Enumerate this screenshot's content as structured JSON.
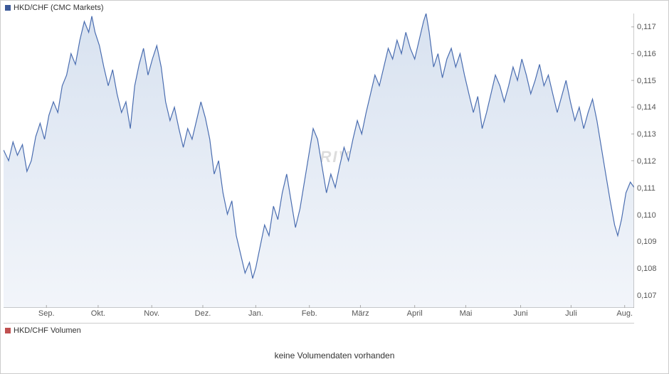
{
  "chart": {
    "type": "area",
    "title": "HKD/CHF (CMC Markets)",
    "title_marker_color": "#3b5998",
    "watermark": "ARIVA",
    "line_color": "#4a6db0",
    "line_width": 1.2,
    "fill_gradient_top": "#d8e2f0",
    "fill_gradient_bottom": "#f2f5fa",
    "background_color": "#ffffff",
    "border_color": "#cccccc",
    "ylim": [
      0.1065,
      0.1175
    ],
    "yticks": [
      0.107,
      0.108,
      0.109,
      0.11,
      0.111,
      0.112,
      0.113,
      0.114,
      0.115,
      0.116,
      0.117
    ],
    "ytick_labels": [
      "0,107",
      "0,108",
      "0,109",
      "0,110",
      "0,111",
      "0,112",
      "0,113",
      "0,114",
      "0,115",
      "0,116",
      "0,117"
    ],
    "xticks": [
      "Sep.",
      "Okt.",
      "Nov.",
      "Dez.",
      "Jan.",
      "Feb.",
      "März",
      "April",
      "Mai",
      "Juni",
      "Juli",
      "Aug."
    ],
    "xtick_positions": [
      0.068,
      0.15,
      0.235,
      0.316,
      0.4,
      0.485,
      0.566,
      0.652,
      0.733,
      0.82,
      0.9,
      0.985
    ],
    "label_fontsize": 11,
    "label_color": "#555555",
    "series": [
      [
        0.0,
        0.1124
      ],
      [
        0.008,
        0.112
      ],
      [
        0.015,
        0.1127
      ],
      [
        0.022,
        0.1122
      ],
      [
        0.03,
        0.1126
      ],
      [
        0.037,
        0.1116
      ],
      [
        0.044,
        0.112
      ],
      [
        0.051,
        0.1129
      ],
      [
        0.058,
        0.1134
      ],
      [
        0.065,
        0.1128
      ],
      [
        0.072,
        0.1137
      ],
      [
        0.079,
        0.1142
      ],
      [
        0.086,
        0.1138
      ],
      [
        0.093,
        0.1148
      ],
      [
        0.1,
        0.1152
      ],
      [
        0.107,
        0.116
      ],
      [
        0.114,
        0.1156
      ],
      [
        0.121,
        0.1165
      ],
      [
        0.128,
        0.1172
      ],
      [
        0.135,
        0.1168
      ],
      [
        0.14,
        0.1174
      ],
      [
        0.145,
        0.1168
      ],
      [
        0.152,
        0.1163
      ],
      [
        0.159,
        0.1155
      ],
      [
        0.166,
        0.1148
      ],
      [
        0.173,
        0.1154
      ],
      [
        0.18,
        0.1145
      ],
      [
        0.187,
        0.1138
      ],
      [
        0.194,
        0.1142
      ],
      [
        0.201,
        0.1132
      ],
      [
        0.208,
        0.1148
      ],
      [
        0.215,
        0.1156
      ],
      [
        0.222,
        0.1162
      ],
      [
        0.229,
        0.1152
      ],
      [
        0.236,
        0.1158
      ],
      [
        0.243,
        0.1163
      ],
      [
        0.25,
        0.1155
      ],
      [
        0.257,
        0.1142
      ],
      [
        0.264,
        0.1135
      ],
      [
        0.271,
        0.114
      ],
      [
        0.278,
        0.1132
      ],
      [
        0.285,
        0.1125
      ],
      [
        0.292,
        0.1132
      ],
      [
        0.299,
        0.1128
      ],
      [
        0.306,
        0.1135
      ],
      [
        0.313,
        0.1142
      ],
      [
        0.32,
        0.1136
      ],
      [
        0.327,
        0.1128
      ],
      [
        0.334,
        0.1115
      ],
      [
        0.341,
        0.112
      ],
      [
        0.348,
        0.1108
      ],
      [
        0.355,
        0.11
      ],
      [
        0.362,
        0.1105
      ],
      [
        0.369,
        0.1092
      ],
      [
        0.376,
        0.1085
      ],
      [
        0.383,
        0.1078
      ],
      [
        0.39,
        0.1082
      ],
      [
        0.395,
        0.1076
      ],
      [
        0.4,
        0.108
      ],
      [
        0.407,
        0.1088
      ],
      [
        0.414,
        0.1096
      ],
      [
        0.421,
        0.1092
      ],
      [
        0.428,
        0.1103
      ],
      [
        0.435,
        0.1098
      ],
      [
        0.442,
        0.1108
      ],
      [
        0.449,
        0.1115
      ],
      [
        0.456,
        0.1105
      ],
      [
        0.463,
        0.1095
      ],
      [
        0.47,
        0.1102
      ],
      [
        0.477,
        0.1112
      ],
      [
        0.484,
        0.1122
      ],
      [
        0.491,
        0.1132
      ],
      [
        0.498,
        0.1128
      ],
      [
        0.505,
        0.1118
      ],
      [
        0.512,
        0.1108
      ],
      [
        0.519,
        0.1115
      ],
      [
        0.526,
        0.111
      ],
      [
        0.533,
        0.1118
      ],
      [
        0.54,
        0.1125
      ],
      [
        0.547,
        0.112
      ],
      [
        0.554,
        0.1128
      ],
      [
        0.561,
        0.1135
      ],
      [
        0.568,
        0.113
      ],
      [
        0.575,
        0.1138
      ],
      [
        0.582,
        0.1145
      ],
      [
        0.589,
        0.1152
      ],
      [
        0.596,
        0.1148
      ],
      [
        0.603,
        0.1155
      ],
      [
        0.61,
        0.1162
      ],
      [
        0.617,
        0.1158
      ],
      [
        0.624,
        0.1165
      ],
      [
        0.631,
        0.116
      ],
      [
        0.638,
        0.1168
      ],
      [
        0.645,
        0.1162
      ],
      [
        0.652,
        0.1158
      ],
      [
        0.659,
        0.1165
      ],
      [
        0.666,
        0.1172
      ],
      [
        0.67,
        0.1175
      ],
      [
        0.675,
        0.1168
      ],
      [
        0.682,
        0.1155
      ],
      [
        0.689,
        0.116
      ],
      [
        0.696,
        0.1151
      ],
      [
        0.703,
        0.1158
      ],
      [
        0.71,
        0.1162
      ],
      [
        0.717,
        0.1155
      ],
      [
        0.724,
        0.116
      ],
      [
        0.731,
        0.1152
      ],
      [
        0.738,
        0.1145
      ],
      [
        0.745,
        0.1138
      ],
      [
        0.752,
        0.1144
      ],
      [
        0.759,
        0.1132
      ],
      [
        0.766,
        0.1138
      ],
      [
        0.773,
        0.1145
      ],
      [
        0.78,
        0.1152
      ],
      [
        0.787,
        0.1148
      ],
      [
        0.794,
        0.1142
      ],
      [
        0.801,
        0.1148
      ],
      [
        0.808,
        0.1155
      ],
      [
        0.815,
        0.115
      ],
      [
        0.822,
        0.1158
      ],
      [
        0.829,
        0.1152
      ],
      [
        0.836,
        0.1145
      ],
      [
        0.843,
        0.115
      ],
      [
        0.85,
        0.1156
      ],
      [
        0.857,
        0.1148
      ],
      [
        0.864,
        0.1152
      ],
      [
        0.871,
        0.1145
      ],
      [
        0.878,
        0.1138
      ],
      [
        0.885,
        0.1144
      ],
      [
        0.892,
        0.115
      ],
      [
        0.899,
        0.1142
      ],
      [
        0.906,
        0.1135
      ],
      [
        0.913,
        0.114
      ],
      [
        0.92,
        0.1132
      ],
      [
        0.927,
        0.1138
      ],
      [
        0.934,
        0.1143
      ],
      [
        0.941,
        0.1135
      ],
      [
        0.948,
        0.1125
      ],
      [
        0.955,
        0.1115
      ],
      [
        0.962,
        0.1105
      ],
      [
        0.969,
        0.1096
      ],
      [
        0.974,
        0.1092
      ],
      [
        0.98,
        0.1098
      ],
      [
        0.987,
        0.1108
      ],
      [
        0.994,
        0.1112
      ],
      [
        1.0,
        0.111
      ]
    ]
  },
  "volume": {
    "legend": "HKD/CHF Volumen",
    "marker_color": "#c05050",
    "message": "keine Volumendaten vorhanden"
  }
}
